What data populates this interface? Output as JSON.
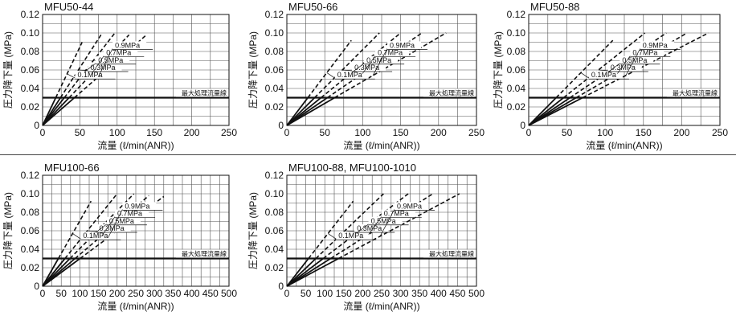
{
  "chart_data": [
    {
      "type": "line",
      "title": "MFU50-44",
      "ylabel": "圧力降下量 (MPa)",
      "xlabel": "流量 (ℓ/min(ANR))",
      "xlim": [
        0,
        250
      ],
      "ylim": [
        0,
        0.12
      ],
      "xticks": [
        "0",
        "50",
        "100",
        "150",
        "200",
        "250"
      ],
      "yticks": [
        "0",
        "0.02",
        "0.04",
        "0.06",
        "0.08",
        "0.10",
        "0.12"
      ],
      "grid": true,
      "max_flow_label": "最大処理流量線",
      "max_flow_y": 0.03,
      "series": [
        {
          "name": "0.1MPa",
          "x": [
            0,
            53
          ],
          "y": [
            0,
            0.09
          ]
        },
        {
          "name": "0.3MPa",
          "x": [
            0,
            80
          ],
          "y": [
            0,
            0.1
          ]
        },
        {
          "name": "0.5MPa",
          "x": [
            0,
            97
          ],
          "y": [
            0,
            0.1
          ]
        },
        {
          "name": "0.7MPa",
          "x": [
            0,
            116
          ],
          "y": [
            0,
            0.098
          ]
        },
        {
          "name": "0.9MPa",
          "x": [
            0,
            138
          ],
          "y": [
            0,
            0.097
          ]
        }
      ]
    },
    {
      "type": "line",
      "title": "MFU50-66",
      "ylabel": "圧力降下量 (MPa)",
      "xlabel": "流量 (ℓ/min(ANR))",
      "xlim": [
        0,
        250
      ],
      "ylim": [
        0,
        0.12
      ],
      "xticks": [
        "0",
        "50",
        "100",
        "150",
        "200",
        "250"
      ],
      "yticks": [
        "0",
        "0.02",
        "0.04",
        "0.06",
        "0.08",
        "0.10",
        "0.12"
      ],
      "grid": true,
      "max_flow_label": "最大処理流量線",
      "max_flow_y": 0.03,
      "series": [
        {
          "name": "0.1MPa",
          "x": [
            0,
            85
          ],
          "y": [
            0,
            0.092
          ]
        },
        {
          "name": "0.3MPa",
          "x": [
            0,
            122
          ],
          "y": [
            0,
            0.1
          ]
        },
        {
          "name": "0.5MPa",
          "x": [
            0,
            150
          ],
          "y": [
            0,
            0.1
          ]
        },
        {
          "name": "0.7MPa",
          "x": [
            0,
            178
          ],
          "y": [
            0,
            0.1
          ]
        },
        {
          "name": "0.9MPa",
          "x": [
            0,
            210
          ],
          "y": [
            0,
            0.1
          ]
        }
      ]
    },
    {
      "type": "line",
      "title": "MFU50-88",
      "ylabel": "圧力降下量 (MPa)",
      "xlabel": "流量 (ℓ/min(ANR))",
      "xlim": [
        0,
        250
      ],
      "ylim": [
        0,
        0.12
      ],
      "xticks": [
        "0",
        "50",
        "100",
        "150",
        "200",
        "250"
      ],
      "yticks": [
        "0",
        "0.02",
        "0.04",
        "0.06",
        "0.08",
        "0.10",
        "0.12"
      ],
      "grid": true,
      "max_flow_label": "最大処理流量線",
      "max_flow_y": 0.03,
      "series": [
        {
          "name": "0.1MPa",
          "x": [
            0,
            110
          ],
          "y": [
            0,
            0.092
          ]
        },
        {
          "name": "0.3MPa",
          "x": [
            0,
            152
          ],
          "y": [
            0,
            0.1
          ]
        },
        {
          "name": "0.5MPa",
          "x": [
            0,
            180
          ],
          "y": [
            0,
            0.1
          ]
        },
        {
          "name": "0.7MPa",
          "x": [
            0,
            207
          ],
          "y": [
            0,
            0.1
          ]
        },
        {
          "name": "0.9MPa",
          "x": [
            0,
            235
          ],
          "y": [
            0,
            0.1
          ]
        }
      ]
    },
    {
      "type": "line",
      "title": "MFU100-66",
      "ylabel": "圧力降下量 (MPa)",
      "xlabel": "流量 (ℓ/min(ANR))",
      "xlim": [
        0,
        500
      ],
      "ylim": [
        0,
        0.12
      ],
      "xticks": [
        "0",
        "50",
        "100",
        "150",
        "200",
        "250",
        "300",
        "350",
        "400",
        "450",
        "500"
      ],
      "yticks": [
        "0",
        "0.02",
        "0.04",
        "0.06",
        "0.08",
        "0.10",
        "0.12"
      ],
      "grid": true,
      "max_flow_label": "最大処理流量線",
      "max_flow_y": 0.03,
      "series": [
        {
          "name": "0.1MPa",
          "x": [
            0,
            130
          ],
          "y": [
            0,
            0.092
          ]
        },
        {
          "name": "0.3MPa",
          "x": [
            0,
            200
          ],
          "y": [
            0,
            0.1
          ]
        },
        {
          "name": "0.5MPa",
          "x": [
            0,
            245
          ],
          "y": [
            0,
            0.1
          ]
        },
        {
          "name": "0.7MPa",
          "x": [
            0,
            285
          ],
          "y": [
            0,
            0.098
          ]
        },
        {
          "name": "0.9MPa",
          "x": [
            0,
            325
          ],
          "y": [
            0,
            0.097
          ]
        }
      ]
    },
    {
      "type": "line",
      "title": "MFU100-88, MFU100-1010",
      "ylabel": "圧力降下量 (MPa)",
      "xlabel": "流量 (ℓ/min(ANR))",
      "xlim": [
        0,
        500
      ],
      "ylim": [
        0,
        0.12
      ],
      "xticks": [
        "0",
        "50",
        "100",
        "150",
        "200",
        "250",
        "300",
        "350",
        "400",
        "450",
        "500"
      ],
      "yticks": [
        "0",
        "0.02",
        "0.04",
        "0.06",
        "0.08",
        "0.10",
        "0.12"
      ],
      "grid": true,
      "max_flow_label": "最大処理流量線",
      "max_flow_y": 0.03,
      "series": [
        {
          "name": "0.1MPa",
          "x": [
            0,
            175
          ],
          "y": [
            0,
            0.092
          ]
        },
        {
          "name": "0.3MPa",
          "x": [
            0,
            255
          ],
          "y": [
            0,
            0.1
          ]
        },
        {
          "name": "0.5MPa",
          "x": [
            0,
            320
          ],
          "y": [
            0,
            0.1
          ]
        },
        {
          "name": "0.7MPa",
          "x": [
            0,
            385
          ],
          "y": [
            0,
            0.1
          ]
        },
        {
          "name": "0.9MPa",
          "x": [
            0,
            455
          ],
          "y": [
            0,
            0.1
          ]
        }
      ]
    }
  ]
}
